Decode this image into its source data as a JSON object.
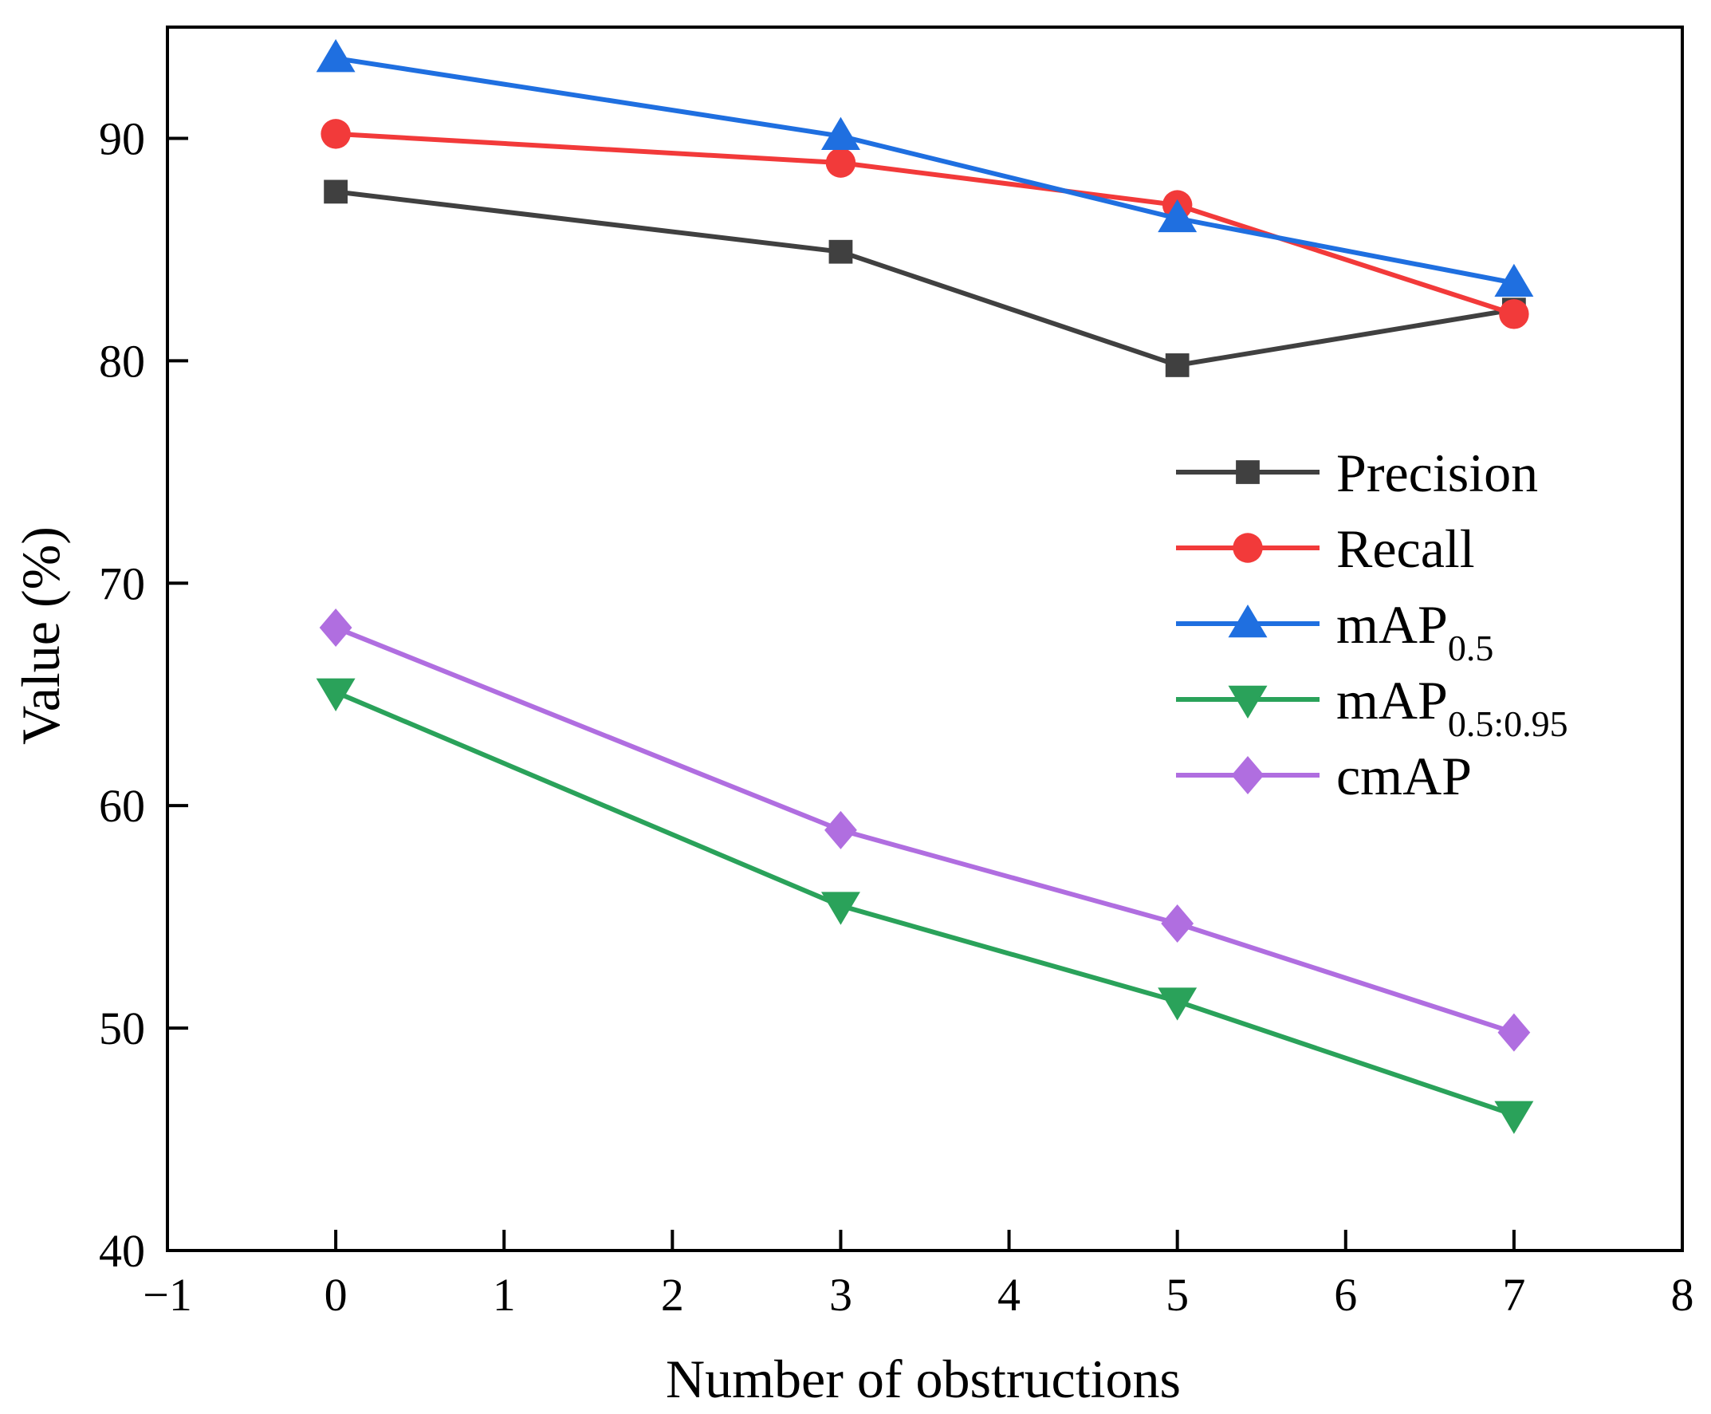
{
  "chart_data": {
    "type": "line",
    "title": "",
    "xlabel": "Number of obstructions",
    "ylabel": "Value (%)",
    "xlim": [
      -1,
      8
    ],
    "ylim": [
      40,
      95
    ],
    "grid": false,
    "legend_position": "right",
    "x_ticks": [
      -1,
      0,
      1,
      2,
      3,
      4,
      5,
      6,
      7,
      8
    ],
    "x_tick_labels": [
      "−1",
      "0",
      "1",
      "2",
      "3",
      "4",
      "5",
      "6",
      "7",
      "8"
    ],
    "y_ticks": [
      40,
      50,
      60,
      70,
      80,
      90
    ],
    "y_tick_labels": [
      "40",
      "50",
      "60",
      "70",
      "80",
      "90"
    ],
    "x": [
      0,
      3,
      5,
      7
    ],
    "series": [
      {
        "name": "Precision",
        "legend_main": "Precision",
        "legend_sub": "",
        "color": "#404040",
        "marker": "square",
        "values": [
          87.6,
          84.9,
          79.8,
          82.3
        ]
      },
      {
        "name": "Recall",
        "legend_main": "Recall",
        "legend_sub": "",
        "color": "#f23a3a",
        "marker": "circle",
        "values": [
          90.2,
          88.9,
          87.0,
          82.1
        ]
      },
      {
        "name": "mAP0.5",
        "legend_main": "mAP",
        "legend_sub": "0.5",
        "color": "#1f6fe0",
        "marker": "triangle-up",
        "values": [
          93.6,
          90.1,
          86.4,
          83.5
        ]
      },
      {
        "name": "mAP0.5:0.95",
        "legend_main": "mAP",
        "legend_sub": "0.5:0.95",
        "color": "#2aa25a",
        "marker": "triangle-down",
        "values": [
          65.1,
          55.5,
          51.2,
          46.1
        ]
      },
      {
        "name": "cmAP",
        "legend_main": "cmAP",
        "legend_sub": "",
        "color": "#b06ee0",
        "marker": "diamond",
        "values": [
          68.0,
          58.9,
          54.7,
          49.8
        ]
      }
    ]
  }
}
